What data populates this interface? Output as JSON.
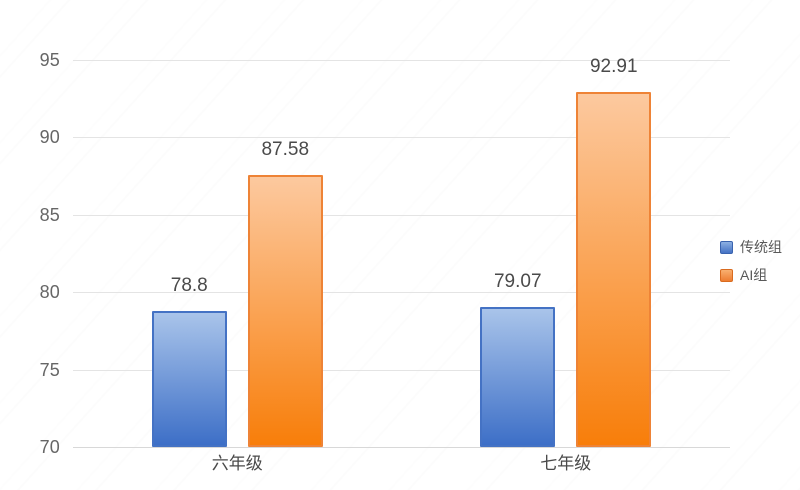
{
  "chart_data": {
    "type": "bar",
    "title": "",
    "xlabel": "",
    "ylabel": "",
    "categories": [
      "六年级",
      "七年级"
    ],
    "series": [
      {
        "name": "传统组",
        "values": [
          78.8,
          79.07
        ],
        "labels": [
          "78.8",
          "79.07"
        ],
        "border_color": "#4472c4",
        "fill_top": "#a9c4ea",
        "fill_bottom": "#3d6fc7",
        "legend_border": "#3a63ae",
        "legend_top": "#8db0e2",
        "legend_bottom": "#4472c4"
      },
      {
        "name": "AI组",
        "values": [
          87.58,
          92.91
        ],
        "labels": [
          "87.58",
          "92.91"
        ],
        "border_color": "#ee8336",
        "fill_top": "#fcc99f",
        "fill_bottom": "#f87e0a",
        "legend_border": "#d96b1f",
        "legend_top": "#f9b071",
        "legend_bottom": "#ed7d31"
      }
    ],
    "y_ticks": [
      70,
      75,
      80,
      85,
      90,
      95
    ],
    "ylim": [
      70,
      95
    ],
    "grid": true,
    "legend_position": "right",
    "colors": {
      "background": "#ffffff",
      "gridline": "#e4e4e4",
      "axis_line": "#d8d8d8",
      "tick_label": "#666666",
      "value_label": "#4a4a4a",
      "category_label": "#4a4a4a",
      "legend_label": "#595959"
    }
  }
}
